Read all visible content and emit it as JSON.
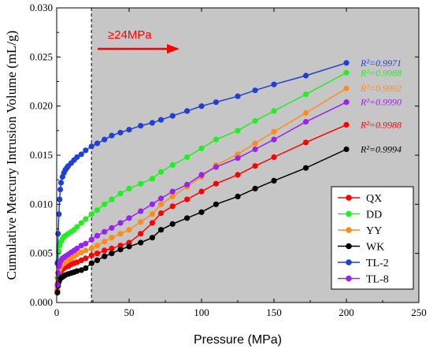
{
  "chart_data": {
    "type": "line",
    "xlabel": "Pressure (MPa)",
    "ylabel": "Cumulative Mercury Intrusion Volume (mL/g)",
    "xlim": [
      0,
      250
    ],
    "ylim": [
      0,
      0.03
    ],
    "xticks": [
      "0",
      "50",
      "100",
      "150",
      "200",
      "250"
    ],
    "yticks": [
      "0.000",
      "0.005",
      "0.010",
      "0.015",
      "0.020",
      "0.025",
      "0.030"
    ],
    "threshold_x": 24,
    "annotation": "≥24MPa",
    "legend_position": "bottom-right",
    "colors": {
      "shaded_region": "#c6c6c6",
      "annotation": "#ff0000"
    },
    "series": [
      {
        "name": "QX",
        "color": "#ff0000",
        "r2": "R²=0.9988",
        "x": [
          0.5,
          1,
          1.5,
          2,
          3,
          4,
          5,
          6,
          8,
          10,
          12,
          14,
          17,
          20,
          24,
          28,
          33,
          38,
          44,
          50,
          58,
          66,
          72,
          80,
          90,
          100,
          110,
          125,
          137,
          150,
          172,
          200
        ],
        "y": [
          0.0012,
          0.002,
          0.0026,
          0.0029,
          0.0032,
          0.0034,
          0.0035,
          0.0036,
          0.0037,
          0.0039,
          0.004,
          0.0041,
          0.0043,
          0.0045,
          0.0048,
          0.005,
          0.0053,
          0.0055,
          0.0058,
          0.0061,
          0.007,
          0.0081,
          0.0091,
          0.0098,
          0.0105,
          0.0113,
          0.0121,
          0.013,
          0.0139,
          0.0148,
          0.0163,
          0.0181
        ]
      },
      {
        "name": "DD",
        "color": "#22ee22",
        "r2": "R²=0.9988",
        "x": [
          0.5,
          1,
          1.5,
          2,
          3,
          4,
          5,
          6,
          8,
          10,
          12,
          14,
          17,
          20,
          24,
          28,
          33,
          38,
          44,
          50,
          58,
          66,
          72,
          80,
          90,
          100,
          110,
          125,
          137,
          150,
          172,
          200
        ],
        "y": [
          0.0025,
          0.0042,
          0.0052,
          0.0058,
          0.0062,
          0.0065,
          0.0067,
          0.0068,
          0.007,
          0.0072,
          0.0074,
          0.0077,
          0.0081,
          0.0085,
          0.009,
          0.0094,
          0.01,
          0.0105,
          0.0111,
          0.0116,
          0.0121,
          0.0126,
          0.0133,
          0.014,
          0.0148,
          0.0157,
          0.0166,
          0.0175,
          0.0185,
          0.0195,
          0.0212,
          0.0234
        ]
      },
      {
        "name": "YY",
        "color": "#ff8c1a",
        "r2": "R²=0.9992",
        "x": [
          0.5,
          1,
          1.5,
          2,
          3,
          4,
          5,
          6,
          8,
          10,
          12,
          14,
          17,
          20,
          24,
          28,
          33,
          38,
          44,
          50,
          58,
          66,
          72,
          80,
          90,
          100,
          110,
          125,
          137,
          150,
          172,
          200
        ],
        "y": [
          0.0015,
          0.0024,
          0.0031,
          0.0034,
          0.0037,
          0.0039,
          0.004,
          0.0041,
          0.0043,
          0.0045,
          0.0047,
          0.0049,
          0.0051,
          0.0053,
          0.0055,
          0.0058,
          0.0062,
          0.0066,
          0.007,
          0.0074,
          0.0082,
          0.009,
          0.01,
          0.0108,
          0.0118,
          0.0128,
          0.014,
          0.0151,
          0.0162,
          0.0174,
          0.0193,
          0.0218
        ]
      },
      {
        "name": "WK",
        "color": "#000000",
        "r2": "R²=0.9994",
        "x": [
          0.5,
          1,
          1.5,
          2,
          3,
          4,
          5,
          6,
          8,
          10,
          12,
          14,
          17,
          20,
          24,
          28,
          33,
          38,
          44,
          50,
          58,
          66,
          72,
          80,
          90,
          100,
          110,
          125,
          137,
          150,
          172,
          200
        ],
        "y": [
          0.001,
          0.0017,
          0.0021,
          0.0023,
          0.0025,
          0.0026,
          0.0027,
          0.0028,
          0.0029,
          0.003,
          0.0031,
          0.0032,
          0.0033,
          0.0035,
          0.004,
          0.0043,
          0.0047,
          0.005,
          0.0054,
          0.0057,
          0.0061,
          0.0066,
          0.0074,
          0.008,
          0.0086,
          0.0092,
          0.01,
          0.0108,
          0.0116,
          0.0124,
          0.0137,
          0.0156
        ]
      },
      {
        "name": "TL-2",
        "color": "#1f3fd6",
        "r2": "R²=0.9971",
        "x": [
          0.5,
          1,
          1.5,
          2,
          2.5,
          3,
          4,
          5,
          6,
          7,
          8,
          10,
          12,
          14,
          17,
          20,
          24,
          28,
          33,
          38,
          44,
          50,
          58,
          66,
          72,
          80,
          90,
          100,
          110,
          125,
          137,
          150,
          172,
          200
        ],
        "y": [
          0.004,
          0.007,
          0.009,
          0.0105,
          0.0115,
          0.0122,
          0.0128,
          0.0132,
          0.0135,
          0.0137,
          0.0139,
          0.0142,
          0.0145,
          0.0148,
          0.0151,
          0.0155,
          0.0159,
          0.0162,
          0.0166,
          0.017,
          0.0173,
          0.0176,
          0.018,
          0.0183,
          0.0186,
          0.019,
          0.0195,
          0.02,
          0.0204,
          0.021,
          0.0216,
          0.0222,
          0.0231,
          0.0244
        ]
      },
      {
        "name": "TL-8",
        "color": "#9a22ee",
        "r2": "R²=0.9990",
        "x": [
          0.5,
          1,
          1.5,
          2,
          3,
          4,
          5,
          6,
          8,
          10,
          12,
          14,
          17,
          20,
          24,
          28,
          33,
          38,
          44,
          50,
          58,
          66,
          72,
          80,
          90,
          100,
          110,
          125,
          137,
          150,
          172,
          200
        ],
        "y": [
          0.0018,
          0.003,
          0.0037,
          0.004,
          0.0043,
          0.0045,
          0.0046,
          0.0047,
          0.0049,
          0.0051,
          0.0053,
          0.0055,
          0.0058,
          0.006,
          0.0064,
          0.0068,
          0.0072,
          0.0076,
          0.0081,
          0.0086,
          0.0093,
          0.01,
          0.0106,
          0.0113,
          0.012,
          0.013,
          0.0138,
          0.0147,
          0.0156,
          0.0166,
          0.0184,
          0.0204
        ]
      }
    ]
  }
}
